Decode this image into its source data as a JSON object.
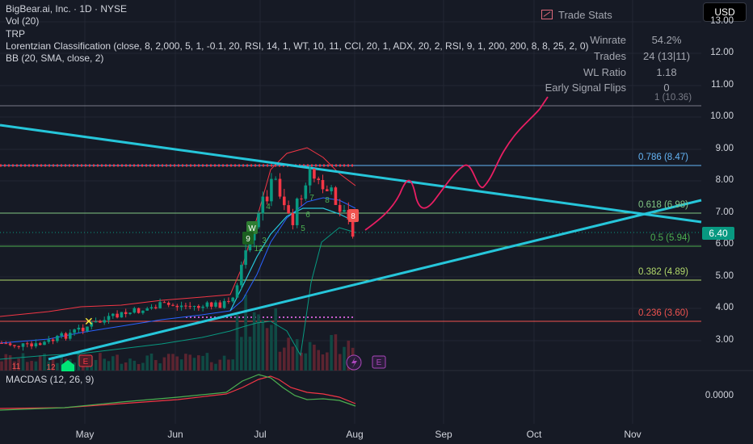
{
  "legend": {
    "symbol": "BigBear.ai, Inc. · 1D · NYSE",
    "vol": "Vol (20)",
    "trp": "TRP",
    "lorentzian": "Lorentzian Classification (close, 8, 2,000, 5, 1, -0.1, 20, RSI, 14, 1, WT, 10, 11, CCI, 20, 1, ADX, 20, 2, RSI, 9, 1, 200, 200, 8, 8, 25, 2, 0)",
    "bb": "BB (20, SMA, close, 2)",
    "macd": "MACDAS (12, 26, 9)"
  },
  "trade_stats": {
    "title": "Trade Stats",
    "rows": [
      {
        "label": "Winrate",
        "value": "54.2%"
      },
      {
        "label": "Trades",
        "value": "24 (13|11)"
      },
      {
        "label": "WL Ratio",
        "value": "1.18"
      },
      {
        "label": "Early Signal Flips",
        "value": "0"
      }
    ]
  },
  "currency_button": "USD",
  "price_axis": [
    "13.00",
    "12.00",
    "11.00",
    "10.00",
    "9.00",
    "8.00",
    "7.00",
    "6.00",
    "5.00",
    "4.00",
    "3.00"
  ],
  "last_price": "6.40",
  "macd_axis": "0.0000",
  "time_axis": [
    "May",
    "Jun",
    "Jul",
    "Aug",
    "Sep",
    "Oct",
    "Nov"
  ],
  "fib_levels": [
    {
      "label": "1 (10.36)",
      "color": "#787b86"
    },
    {
      "label": "0.786 (8.47)",
      "color": "#64b5f6"
    },
    {
      "label": "0.618 (6.98)",
      "color": "#81c784"
    },
    {
      "label": "0.5 (5.94)",
      "color": "#4caf50"
    },
    {
      "label": "0.382 (4.89)",
      "color": "#b2d96b"
    },
    {
      "label": "0.236 (3.60)",
      "color": "#f05350"
    }
  ],
  "signal_labels": [
    "W",
    "9",
    "3",
    "12",
    "4",
    "6",
    "7",
    "5",
    "8",
    "8",
    "11",
    "12"
  ],
  "event_marks": [
    "E",
    "E"
  ],
  "colors": {
    "up": "#089981",
    "down": "#f23645",
    "accent": "#26c6da",
    "projection": "#e91e63"
  }
}
